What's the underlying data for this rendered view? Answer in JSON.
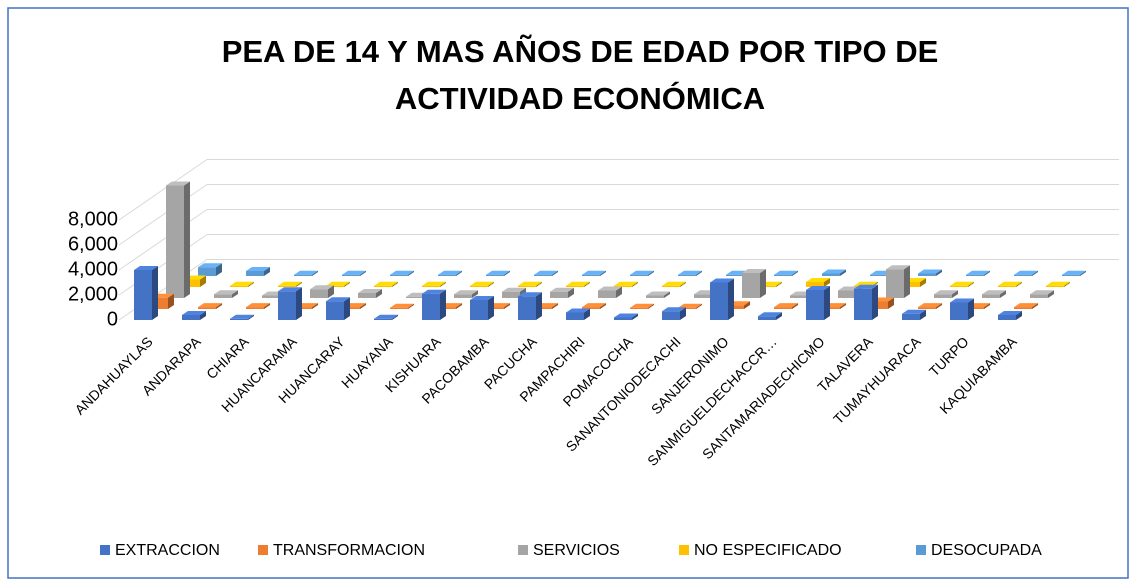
{
  "chart_data": {
    "type": "bar3d",
    "title": "PEA DE 14 Y MAS AÑOS DE EDAD POR TIPO DE ACTIVIDAD ECONÓMICA",
    "categories": [
      "ANDAHUAYLAS",
      "ANDARAPA",
      "CHIARA",
      "HUANCARAMA",
      "HUANCARAY",
      "HUAYANA",
      "KISHUARA",
      "PACOBAMBA",
      "PACUCHA",
      "PAMPACHIRI",
      "POMACOCHA",
      "SANANTONIODECACHI",
      "SANJERONIMO",
      "SANMIGUELDECHACCR…",
      "SANTAMARIADECHICMO",
      "TALAVERA",
      "TUMAYHUARACA",
      "TURPO",
      "KAQUIABAMBA"
    ],
    "series": [
      {
        "name": "EXTRACCION",
        "color": "#4472c4",
        "values": [
          4000,
          400,
          100,
          2300,
          1500,
          100,
          2100,
          1600,
          1900,
          600,
          200,
          700,
          3000,
          300,
          2400,
          2500,
          500,
          1400,
          400
        ]
      },
      {
        "name": "TRANSFORMACION",
        "color": "#ed7d31",
        "values": [
          900,
          150,
          150,
          150,
          150,
          100,
          150,
          150,
          150,
          150,
          100,
          100,
          300,
          150,
          150,
          600,
          150,
          150,
          150
        ]
      },
      {
        "name": "SERVICIOS",
        "color": "#a5a5a5",
        "values": [
          9000,
          300,
          200,
          700,
          400,
          100,
          300,
          500,
          500,
          600,
          200,
          300,
          2000,
          200,
          600,
          2300,
          300,
          300,
          300
        ]
      },
      {
        "name": "NO ESPECIFICADO",
        "color": "#ffc000",
        "values": [
          600,
          100,
          100,
          100,
          100,
          100,
          100,
          100,
          100,
          100,
          100,
          100,
          100,
          400,
          100,
          400,
          100,
          100,
          100
        ]
      },
      {
        "name": "DESOCUPADA",
        "color": "#5b9bd5",
        "values": [
          700,
          400,
          100,
          100,
          100,
          100,
          100,
          100,
          100,
          100,
          100,
          100,
          100,
          200,
          100,
          200,
          100,
          100,
          100
        ]
      }
    ],
    "ylim": [
      0,
      10000
    ],
    "yticks": [
      0,
      {
        "value": 2000,
        "label": "2,000"
      },
      {
        "value": 4000,
        "label": "4,000"
      },
      {
        "value": 6000,
        "label": "6,000"
      },
      {
        "value": 8000,
        "label": "8,000"
      }
    ],
    "grid": true,
    "legend": "bottom"
  }
}
